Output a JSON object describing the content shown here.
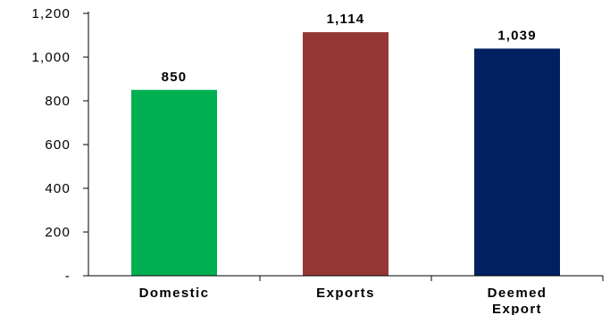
{
  "chart_data": {
    "type": "bar",
    "categories": [
      "Domestic",
      "Exports",
      "Deemed Export"
    ],
    "category_lines": [
      [
        "Domestic"
      ],
      [
        "Exports"
      ],
      [
        "Deemed",
        "Export"
      ]
    ],
    "values": [
      850,
      1114,
      1039
    ],
    "data_labels": [
      "850",
      "1,114",
      "1,039"
    ],
    "colors": [
      "#00b050",
      "#953735",
      "#002060"
    ],
    "ylim": [
      0,
      1200
    ],
    "yticks": [
      0,
      200,
      400,
      600,
      800,
      1000,
      1200
    ],
    "ytick_labels": [
      "-",
      "200",
      "400",
      "600",
      "800",
      "1,000",
      "1,200"
    ],
    "title": "",
    "xlabel": "",
    "ylabel": "",
    "grid": false,
    "legend": "none"
  }
}
